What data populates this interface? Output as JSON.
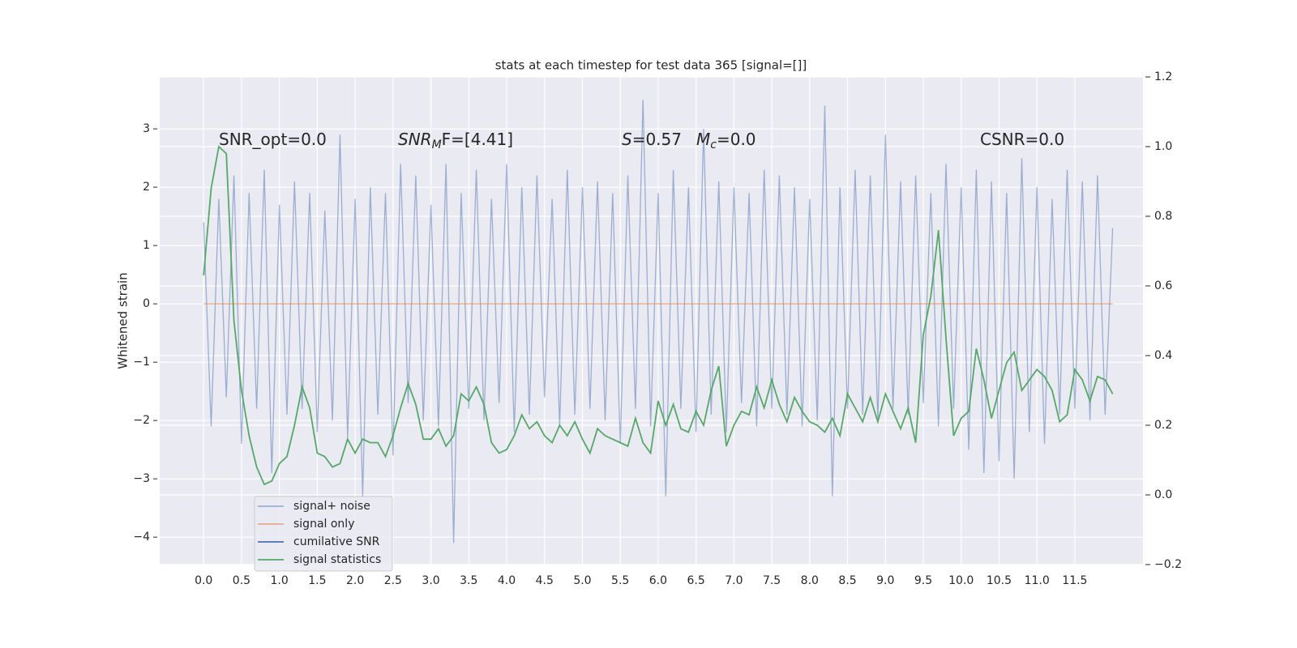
{
  "chart_data": {
    "type": "line",
    "title": "stats at each timestep for test data 365 [signal=[]]",
    "ylabel": "Whitened strain",
    "annotations": [
      [
        "SNR_opt=0.0"
      ],
      [
        "SNR",
        "M",
        "F=[4.41]"
      ],
      [
        "S",
        "=0.57"
      ],
      [
        "M",
        "c",
        "=0.0"
      ],
      [
        "CSNR=0.0"
      ]
    ],
    "x": [
      0.0,
      0.1,
      0.2,
      0.3,
      0.4,
      0.5,
      0.6,
      0.7,
      0.8,
      0.9,
      1.0,
      1.1,
      1.2,
      1.3,
      1.4,
      1.5,
      1.6,
      1.7,
      1.8,
      1.9,
      2.0,
      2.1,
      2.2,
      2.3,
      2.4,
      2.5,
      2.6,
      2.7,
      2.8,
      2.9,
      3.0,
      3.1,
      3.2,
      3.3,
      3.4,
      3.5,
      3.6,
      3.7,
      3.8,
      3.9,
      4.0,
      4.1,
      4.2,
      4.3,
      4.4,
      4.5,
      4.6,
      4.7,
      4.8,
      4.9,
      5.0,
      5.1,
      5.2,
      5.3,
      5.4,
      5.5,
      5.6,
      5.7,
      5.8,
      5.9,
      6.0,
      6.1,
      6.2,
      6.3,
      6.4,
      6.5,
      6.6,
      6.7,
      6.8,
      6.9,
      7.0,
      7.1,
      7.2,
      7.3,
      7.4,
      7.5,
      7.6,
      7.7,
      7.8,
      7.9,
      8.0,
      8.1,
      8.2,
      8.3,
      8.4,
      8.5,
      8.6,
      8.7,
      8.8,
      8.9,
      9.0,
      9.1,
      9.2,
      9.3,
      9.4,
      9.5,
      9.6,
      9.7,
      9.8,
      9.9,
      10.0,
      10.1,
      10.2,
      10.3,
      10.4,
      10.5,
      10.6,
      10.7,
      10.8,
      10.9,
      11.0,
      11.1,
      11.2,
      11.3,
      11.4,
      11.5,
      11.6,
      11.7,
      11.8,
      11.9,
      12.0
    ],
    "series": [
      {
        "name": "signal+ noise",
        "color": "#4c72b0",
        "values": [
          1.4,
          -2.1,
          1.8,
          -1.6,
          2.2,
          -2.4,
          1.9,
          -1.8,
          2.3,
          -2.9,
          1.7,
          -1.9,
          2.1,
          -1.8,
          1.9,
          -2.2,
          1.6,
          -2.0,
          2.9,
          -2.3,
          1.8,
          -3.3,
          2.0,
          -1.9,
          1.9,
          -2.6,
          2.4,
          -1.7,
          2.2,
          -2.0,
          1.7,
          -2.1,
          2.4,
          -4.1,
          1.9,
          -1.8,
          2.3,
          -2.0,
          1.8,
          -1.7,
          2.4,
          -2.2,
          2.0,
          -1.9,
          2.2,
          -1.6,
          1.8,
          -2.1,
          2.3,
          -1.9,
          2.0,
          -1.8,
          2.1,
          -2.0,
          1.9,
          -2.4,
          2.2,
          -1.8,
          3.5,
          -2.1,
          1.9,
          -3.3,
          2.3,
          -1.8,
          2.0,
          -2.2,
          3.0,
          -1.9,
          2.1,
          -2.2,
          2.0,
          -1.7,
          1.9,
          -2.1,
          2.3,
          -1.8,
          2.2,
          -1.9,
          2.0,
          -2.1,
          1.8,
          -2.0,
          3.4,
          -3.3,
          2.0,
          -1.8,
          2.3,
          -1.9,
          2.2,
          -2.0,
          2.9,
          -1.8,
          2.1,
          -1.9,
          2.2,
          -1.7,
          1.9,
          -2.1,
          2.4,
          -1.8,
          2.0,
          -2.5,
          2.3,
          -2.9,
          2.1,
          -2.7,
          1.9,
          -3.0,
          2.5,
          -2.2,
          2.0,
          -2.4,
          1.8,
          -1.9,
          2.3,
          -1.8,
          2.1,
          -2.0,
          2.2,
          -1.9,
          1.3
        ]
      },
      {
        "name": "signal only",
        "color": "#dd8452",
        "values": [
          0,
          0,
          0,
          0,
          0,
          0,
          0,
          0,
          0,
          0,
          0,
          0,
          0,
          0,
          0,
          0,
          0,
          0,
          0,
          0,
          0,
          0,
          0,
          0,
          0,
          0,
          0,
          0,
          0,
          0,
          0,
          0,
          0,
          0,
          0,
          0,
          0,
          0,
          0,
          0,
          0,
          0,
          0,
          0,
          0,
          0,
          0,
          0,
          0,
          0,
          0,
          0,
          0,
          0,
          0,
          0,
          0,
          0,
          0,
          0,
          0,
          0,
          0,
          0,
          0,
          0,
          0,
          0,
          0,
          0,
          0,
          0,
          0,
          0,
          0,
          0,
          0,
          0,
          0,
          0,
          0,
          0,
          0,
          0,
          0,
          0,
          0,
          0,
          0,
          0,
          0,
          0,
          0,
          0,
          0,
          0,
          0,
          0,
          0,
          0,
          0,
          0,
          0,
          0,
          0,
          0,
          0,
          0,
          0,
          0,
          0,
          0,
          0,
          0,
          0,
          0,
          0,
          0,
          0,
          0,
          0
        ]
      },
      {
        "name": "cumilative SNR",
        "color": "#4c72b0"
      },
      {
        "name": "signal statistics",
        "color": "#55a868",
        "axis": "y2",
        "values": [
          0.63,
          0.88,
          1.0,
          0.98,
          0.5,
          0.3,
          0.17,
          0.08,
          0.03,
          0.04,
          0.09,
          0.11,
          0.2,
          0.31,
          0.25,
          0.12,
          0.11,
          0.08,
          0.09,
          0.16,
          0.12,
          0.16,
          0.15,
          0.15,
          0.11,
          0.17,
          0.25,
          0.32,
          0.26,
          0.16,
          0.16,
          0.19,
          0.14,
          0.17,
          0.29,
          0.27,
          0.31,
          0.26,
          0.15,
          0.12,
          0.13,
          0.17,
          0.23,
          0.19,
          0.21,
          0.17,
          0.15,
          0.2,
          0.17,
          0.21,
          0.16,
          0.12,
          0.19,
          0.17,
          0.16,
          0.15,
          0.14,
          0.22,
          0.15,
          0.12,
          0.27,
          0.2,
          0.26,
          0.19,
          0.18,
          0.24,
          0.2,
          0.3,
          0.37,
          0.14,
          0.2,
          0.24,
          0.23,
          0.31,
          0.25,
          0.33,
          0.26,
          0.21,
          0.28,
          0.24,
          0.21,
          0.2,
          0.18,
          0.22,
          0.17,
          0.29,
          0.25,
          0.21,
          0.28,
          0.21,
          0.29,
          0.24,
          0.19,
          0.25,
          0.15,
          0.46,
          0.57,
          0.76,
          0.45,
          0.17,
          0.22,
          0.24,
          0.42,
          0.33,
          0.22,
          0.3,
          0.38,
          0.41,
          0.3,
          0.33,
          0.36,
          0.34,
          0.3,
          0.21,
          0.23,
          0.36,
          0.33,
          0.27,
          0.34,
          0.33,
          0.29
        ]
      }
    ],
    "xlim": [
      -0.58,
      12.4
    ],
    "xticks": [
      {
        "value": 0,
        "label": "0.0"
      },
      {
        "value": 0.5,
        "label": "0.5"
      },
      {
        "value": 1,
        "label": "1.0"
      },
      {
        "value": 1.5,
        "label": "1.5"
      },
      {
        "value": 2,
        "label": "2.0"
      },
      {
        "value": 2.5,
        "label": "2.5"
      },
      {
        "value": 3,
        "label": "3.0"
      },
      {
        "value": 3.5,
        "label": "3.5"
      },
      {
        "value": 4,
        "label": "4.0"
      },
      {
        "value": 4.5,
        "label": "4.5"
      },
      {
        "value": 5,
        "label": "5.0"
      },
      {
        "value": 5.5,
        "label": "5.5"
      },
      {
        "value": 6,
        "label": "6.0"
      },
      {
        "value": 6.5,
        "label": "6.5"
      },
      {
        "value": 7,
        "label": "7.0"
      },
      {
        "value": 7.5,
        "label": "7.5"
      },
      {
        "value": 8,
        "label": "8.0"
      },
      {
        "value": 8.5,
        "label": "8.5"
      },
      {
        "value": 9,
        "label": "9.0"
      },
      {
        "value": 9.5,
        "label": "9.5"
      },
      {
        "value": 10,
        "label": "10.0"
      },
      {
        "value": 10.5,
        "label": "10.5"
      },
      {
        "value": 11,
        "label": "11.0"
      },
      {
        "value": 11.5,
        "label": "11.5"
      }
    ],
    "ylim": [
      -4.47,
      3.89
    ],
    "yticks": [
      {
        "value": -4,
        "label": "−4"
      },
      {
        "value": -3,
        "label": "−3"
      },
      {
        "value": -2,
        "label": "−2"
      },
      {
        "value": -1,
        "label": "−1"
      },
      0,
      1,
      2,
      3
    ],
    "y2lim": [
      -0.2,
      1.2
    ],
    "y2ticks": [
      {
        "value": -0.2,
        "label": "−0.2"
      },
      {
        "value": 0,
        "label": "0.0"
      },
      0.2,
      0.4,
      0.6,
      0.8,
      {
        "value": 1,
        "label": "1.0"
      },
      1.2
    ],
    "grid": true,
    "legend": "lower left"
  }
}
